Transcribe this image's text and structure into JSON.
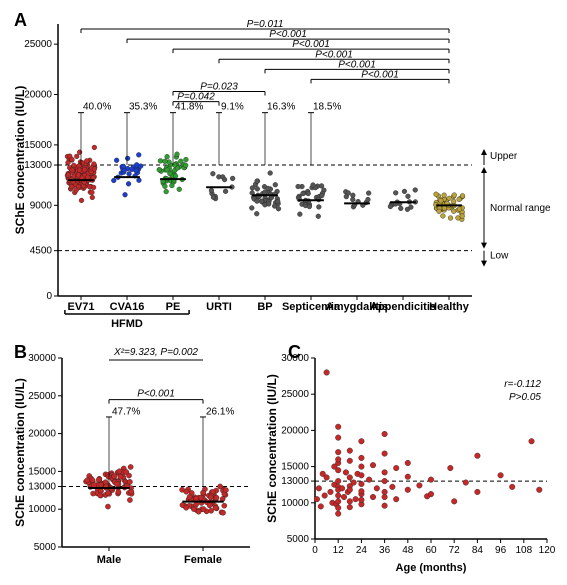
{
  "panelA": {
    "label": "A",
    "y_title": "SChE concentration (IU/L)",
    "y_min": 0,
    "y_max": 27000,
    "y_ticks": [
      0,
      4500,
      9000,
      13000,
      15000,
      20000,
      25000
    ],
    "upper_line": 13000,
    "lower_line": 4500,
    "range_labels": {
      "upper": "Upper",
      "normal": "Normal range",
      "low": "Low"
    },
    "categories": [
      {
        "name": "EV71",
        "color": "#c62828",
        "pct": "40.0%",
        "n": 140,
        "mean": 12000,
        "spread": 3200,
        "median": 11500
      },
      {
        "name": "CVA16",
        "color": "#1a3fd1",
        "pct": "35.3%",
        "n": 25,
        "mean": 12500,
        "spread": 3000,
        "median": 11800
      },
      {
        "name": "PE",
        "color": "#2e9e2e",
        "pct": "41.8%",
        "n": 45,
        "mean": 12200,
        "spread": 3100,
        "median": 11600
      },
      {
        "name": "URTI",
        "color": "#555555",
        "pct": "9.1%",
        "n": 12,
        "mean": 10500,
        "spread": 2000,
        "median": 10800
      },
      {
        "name": "BP",
        "color": "#555555",
        "pct": "16.3%",
        "n": 40,
        "mean": 10200,
        "spread": 2800,
        "median": 10000
      },
      {
        "name": "Septicemia",
        "color": "#555555",
        "pct": "18.5%",
        "n": 30,
        "mean": 9800,
        "spread": 3000,
        "median": 9500
      },
      {
        "name": "Amygdalitis",
        "color": "#555555",
        "pct": "",
        "n": 12,
        "mean": 9500,
        "spread": 2000,
        "median": 9200
      },
      {
        "name": "Appendicitis",
        "color": "#555555",
        "pct": "",
        "n": 15,
        "mean": 9400,
        "spread": 2200,
        "median": 9300
      },
      {
        "name": "Healthy",
        "color": "#bba23a",
        "pct": "",
        "n": 55,
        "mean": 9000,
        "spread": 2000,
        "median": 9000
      }
    ],
    "hfmd_label": "HFMD",
    "comparisons": [
      {
        "from": 0,
        "to": 8,
        "y": 26500,
        "text": "P=0.011"
      },
      {
        "from": 1,
        "to": 8,
        "y": 25500,
        "text": "P<0.001"
      },
      {
        "from": 2,
        "to": 8,
        "y": 24500,
        "text": "P<0.001"
      },
      {
        "from": 3,
        "to": 8,
        "y": 23500,
        "text": "P<0.001"
      },
      {
        "from": 4,
        "to": 8,
        "y": 22500,
        "text": "P<0.001"
      },
      {
        "from": 5,
        "to": 8,
        "y": 21500,
        "text": "P<0.001"
      },
      {
        "from": 2,
        "to": 4,
        "y": 20300,
        "text": "P=0.023"
      },
      {
        "from": 2,
        "to": 3,
        "y": 19300,
        "text": "P=0.042"
      }
    ]
  },
  "panelB": {
    "label": "B",
    "y_title": "SChE concentration (IU/L)",
    "y_min": 5000,
    "y_max": 30000,
    "y_ticks": [
      5000,
      10000,
      13000,
      15000,
      20000,
      25000,
      30000
    ],
    "threshold": 13000,
    "categories": [
      {
        "name": "Male",
        "pct": "47.7%",
        "n": 85,
        "mean": 13200,
        "spread": 3500,
        "median": 12800
      },
      {
        "name": "Female",
        "pct": "26.1%",
        "n": 60,
        "mean": 11200,
        "spread": 2900,
        "median": 11000
      }
    ],
    "color": "#c62828",
    "stat_top": {
      "text": "X²=9.323, P=0.002"
    },
    "stat_compare": {
      "text": "P<0.001",
      "y": 24500
    }
  },
  "panelC": {
    "label": "C",
    "y_title": "SChE concentration (IU/L)",
    "x_title": "Age (months)",
    "y_min": 5000,
    "y_max": 30000,
    "y_ticks": [
      5000,
      10000,
      13000,
      15000,
      20000,
      25000,
      30000
    ],
    "x_min": 0,
    "x_max": 120,
    "x_ticks": [
      0,
      12,
      24,
      36,
      48,
      60,
      72,
      84,
      96,
      108,
      120
    ],
    "threshold": 13000,
    "color": "#c62828",
    "stats": {
      "r": "r=-0.112",
      "p": "P>0.05"
    },
    "points": [
      [
        1,
        10500
      ],
      [
        2,
        12000
      ],
      [
        3,
        9500
      ],
      [
        4,
        14000
      ],
      [
        5,
        11000
      ],
      [
        6,
        28000
      ],
      [
        6,
        13500
      ],
      [
        8,
        11500
      ],
      [
        9,
        10000
      ],
      [
        10,
        15000
      ],
      [
        10,
        12500
      ],
      [
        11,
        9800
      ],
      [
        12,
        11000
      ],
      [
        12,
        13000
      ],
      [
        12,
        15500
      ],
      [
        12,
        8500
      ],
      [
        12,
        19000
      ],
      [
        12,
        10200
      ],
      [
        12,
        12200
      ],
      [
        12,
        17000
      ],
      [
        12,
        9300
      ],
      [
        12,
        14500
      ],
      [
        12,
        20500
      ],
      [
        12,
        11800
      ],
      [
        12,
        16000
      ],
      [
        14,
        12000
      ],
      [
        15,
        10800
      ],
      [
        16,
        14200
      ],
      [
        17,
        11500
      ],
      [
        18,
        13500
      ],
      [
        18,
        10200
      ],
      [
        18,
        15800
      ],
      [
        18,
        9400
      ],
      [
        18,
        12300
      ],
      [
        18,
        17200
      ],
      [
        18,
        11800
      ],
      [
        20,
        12800
      ],
      [
        21,
        10500
      ],
      [
        22,
        14000
      ],
      [
        24,
        11200
      ],
      [
        24,
        13800
      ],
      [
        24,
        16200
      ],
      [
        24,
        9800
      ],
      [
        24,
        12600
      ],
      [
        24,
        15000
      ],
      [
        24,
        10400
      ],
      [
        24,
        18500
      ],
      [
        24,
        11600
      ],
      [
        28,
        13200
      ],
      [
        30,
        10800
      ],
      [
        30,
        15200
      ],
      [
        32,
        12000
      ],
      [
        36,
        11500
      ],
      [
        36,
        14200
      ],
      [
        36,
        9600
      ],
      [
        36,
        16800
      ],
      [
        36,
        10800
      ],
      [
        36,
        13000
      ],
      [
        36,
        19500
      ],
      [
        40,
        12200
      ],
      [
        42,
        10500
      ],
      [
        42,
        14800
      ],
      [
        48,
        11800
      ],
      [
        48,
        13600
      ],
      [
        48,
        15500
      ],
      [
        54,
        12400
      ],
      [
        58,
        10900
      ],
      [
        60,
        13200
      ],
      [
        60,
        11200
      ],
      [
        70,
        14800
      ],
      [
        72,
        10200
      ],
      [
        78,
        12800
      ],
      [
        84,
        11500
      ],
      [
        84,
        16500
      ],
      [
        96,
        13800
      ],
      [
        102,
        12200
      ],
      [
        112,
        18500
      ],
      [
        116,
        11800
      ]
    ]
  }
}
